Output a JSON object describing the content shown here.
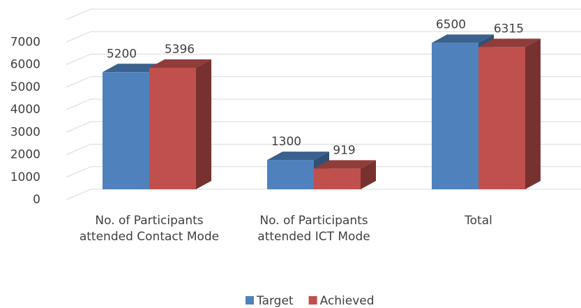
{
  "chart_data": {
    "type": "bar3d",
    "categories": [
      "No. of Participants attended Contact Mode",
      "No. of Participants attended ICT Mode",
      "Total"
    ],
    "series": [
      {
        "name": "Target",
        "color": "#4f81bd",
        "values": [
          5200,
          1300,
          6500
        ]
      },
      {
        "name": "Achieved",
        "color": "#c0504d",
        "values": [
          5396,
          919,
          6315
        ]
      }
    ],
    "ylim": [
      0,
      8000
    ],
    "yticks": [
      0,
      1000,
      2000,
      3000,
      4000,
      5000,
      6000,
      7000
    ],
    "grid": true,
    "legend": "bottom"
  }
}
